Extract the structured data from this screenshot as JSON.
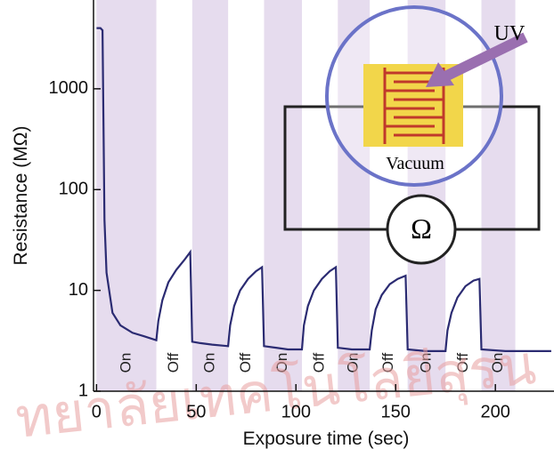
{
  "chart_data": {
    "type": "line",
    "ylabel": "Resistance (MΩ)",
    "xlabel": "Exposure time (sec)",
    "xlim": [
      -1.5,
      228.5
    ],
    "xticks": [
      0,
      50,
      100,
      150,
      200
    ],
    "ylim": [
      1,
      7600
    ],
    "yticks": [
      1,
      10,
      100,
      1000
    ],
    "log_y": true,
    "bands": [
      {
        "label": "On",
        "start": 0,
        "end": 30
      },
      {
        "label": "Off",
        "start": 30,
        "end": 48
      },
      {
        "label": "On",
        "start": 48,
        "end": 66
      },
      {
        "label": "Off",
        "start": 66,
        "end": 84
      },
      {
        "label": "On",
        "start": 84,
        "end": 103
      },
      {
        "label": "Off",
        "start": 103,
        "end": 121
      },
      {
        "label": "On",
        "start": 121,
        "end": 137
      },
      {
        "label": "Off",
        "start": 137,
        "end": 156
      },
      {
        "label": "On",
        "start": 156,
        "end": 175
      },
      {
        "label": "Off",
        "start": 175,
        "end": 193
      },
      {
        "label": "On",
        "start": 193,
        "end": 210
      }
    ],
    "band_color": "#e6dcee",
    "x": [
      0,
      2,
      3,
      4,
      5,
      8,
      12,
      18,
      24,
      30,
      31,
      33,
      36,
      40,
      44,
      47,
      48,
      52,
      58,
      66,
      67,
      69,
      72,
      76,
      80,
      83,
      84,
      90,
      96,
      103,
      104,
      106,
      109,
      113,
      117,
      120,
      121,
      128,
      137,
      138,
      140,
      143,
      147,
      151,
      155,
      156,
      165,
      175,
      176,
      178,
      181,
      185,
      189,
      192,
      193,
      205,
      228
    ],
    "series": [
      {
        "color": "#2b2b72",
        "values": [
          4000,
          4000,
          3800,
          50,
          15,
          6,
          4.5,
          3.8,
          3.5,
          3.2,
          5,
          8,
          12,
          16,
          20,
          24,
          3.1,
          3.0,
          2.9,
          2.8,
          4.5,
          7,
          10,
          13,
          15.5,
          17,
          2.8,
          2.7,
          2.6,
          2.6,
          4.5,
          7,
          10,
          13,
          15.5,
          17,
          2.7,
          2.6,
          2.6,
          4,
          6.5,
          9,
          11.5,
          13,
          14,
          2.6,
          2.5,
          2.5,
          4,
          6,
          8.5,
          11,
          12.5,
          13,
          2.6,
          2.5,
          2.5
        ]
      }
    ],
    "annotations": {
      "uv": "UV",
      "vacuum": "Vacuum",
      "ohm": "Ω"
    },
    "watermark": "ทยาลัยเทคโนโลยีสุรน"
  }
}
